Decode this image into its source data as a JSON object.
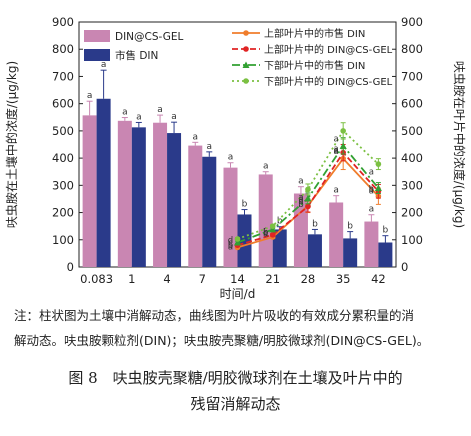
{
  "chart_data": {
    "type": "bar+line",
    "categories": [
      "0.083",
      "1",
      "4",
      "7",
      "14",
      "21",
      "28",
      "35",
      "42"
    ],
    "xlabel": "时间/d",
    "ylabel_left": "呋虫胺在土壤中的浓度/(μg/kg)",
    "ylabel_right": "呋虫胺在叶片中的浓度/(μg/kg)",
    "ylim_left": [
      0,
      900
    ],
    "yticks_left": [
      "0",
      "100",
      "200",
      "300",
      "400",
      "500",
      "600",
      "700",
      "800",
      "900"
    ],
    "ylim_right": [
      0,
      900
    ],
    "yticks_right": [
      "0",
      "100",
      "200",
      "300",
      "400",
      "500",
      "600",
      "700",
      "800",
      "900"
    ],
    "colors": {
      "bar_cs_gel": "#c986b2",
      "bar_din": "#2a3a8a",
      "line_upper_din": "#f07d2c",
      "line_upper_cs": "#e02424",
      "line_lower_din": "#32a032",
      "line_lower_cs": "#7bc042"
    },
    "bar_series": [
      {
        "name": "DIN@CS-GEL",
        "values": [
          557,
          537,
          530,
          446,
          365,
          340,
          270,
          237,
          167
        ],
        "errors": [
          52,
          12,
          28,
          12,
          18,
          10,
          25,
          25,
          25
        ],
        "labels": [
          "a",
          "a",
          "a",
          "a",
          "a",
          "a",
          "a",
          "a",
          "a"
        ]
      },
      {
        "name": "市售 DIN",
        "values": [
          618,
          513,
          492,
          405,
          193,
          138,
          120,
          105,
          90
        ],
        "errors": [
          105,
          18,
          40,
          18,
          18,
          10,
          18,
          25,
          25
        ],
        "labels": [
          "a",
          "a",
          "a",
          "a",
          "b",
          "b",
          "b",
          "b",
          "b"
        ]
      }
    ],
    "line_series": [
      {
        "name": "上部叶片中的市售 DIN",
        "x_start_index": 4,
        "values": [
          72,
          110,
          225,
          398,
          260
        ],
        "errors": [
          5,
          5,
          25,
          40,
          30
        ],
        "labels": [
          "d",
          "c",
          "a",
          "a",
          "a"
        ]
      },
      {
        "name": "上部叶片中的 DIN@CS-GEL",
        "x_start_index": 4,
        "values": [
          80,
          118,
          222,
          420,
          278
        ],
        "errors": [
          5,
          5,
          20,
          30,
          25
        ],
        "labels": [
          "c",
          "c",
          "b",
          "a",
          "b"
        ]
      },
      {
        "name": "下部叶片中的市售 DIN",
        "x_start_index": 4,
        "values": [
          90,
          138,
          252,
          445,
          290
        ],
        "errors": [
          5,
          5,
          20,
          30,
          20
        ],
        "labels": [
          "b",
          "b",
          "a",
          "a",
          "a"
        ]
      },
      {
        "name": "下部叶片中的 DIN@CS-GEL",
        "x_start_index": 4,
        "values": [
          103,
          150,
          285,
          500,
          378
        ],
        "errors": [
          5,
          5,
          20,
          30,
          20
        ],
        "labels": [
          "a",
          "a",
          "a",
          "a",
          "a"
        ]
      }
    ]
  },
  "note": {
    "line1": "注：柱状图为土壤中消解动态，曲线图为叶片吸收的有效成分累积量的消",
    "line2": "解动态。呋虫胺颗粒剂(DIN)；呋虫胺壳聚糖/明胶微球剂(DIN@CS-GEL)。"
  },
  "caption": {
    "line1": "图 8　呋虫胺壳聚糖/明胶微球剂在土壤及叶片中的",
    "line2": "残留消解动态"
  }
}
